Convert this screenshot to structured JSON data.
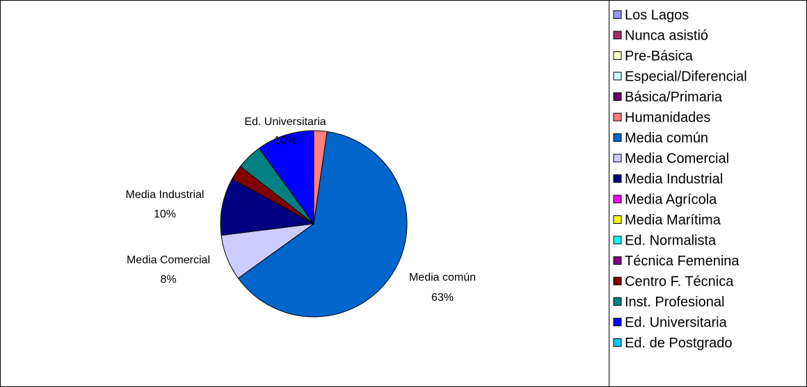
{
  "chart_data": {
    "type": "pie",
    "title": "",
    "start_angle_deg": 0,
    "direction": "clockwise",
    "slices": [
      {
        "label": "Los Lagos",
        "value": 0,
        "color": "#9999ff"
      },
      {
        "label": "Nunca asistió",
        "value": 0,
        "color": "#993366"
      },
      {
        "label": "Pre-Básica",
        "value": 0,
        "color": "#ffffcc"
      },
      {
        "label": "Especial/Diferencial",
        "value": 0,
        "color": "#ccffff"
      },
      {
        "label": "Básica/Primaria",
        "value": 0,
        "color": "#660066"
      },
      {
        "label": "Humanidades",
        "value": 2.3,
        "color": "#ff8080"
      },
      {
        "label": "Media común",
        "value": 63,
        "color": "#0066cc"
      },
      {
        "label": "Media Comercial",
        "value": 8,
        "color": "#ccccff"
      },
      {
        "label": "Media Industrial",
        "value": 10,
        "color": "#000080"
      },
      {
        "label": "Media Agrícola",
        "value": 0,
        "color": "#ff00ff"
      },
      {
        "label": "Media Marítima",
        "value": 0,
        "color": "#ffff00"
      },
      {
        "label": "Ed. Normalista",
        "value": 0,
        "color": "#00ffff"
      },
      {
        "label": "Técnica Femenina",
        "value": 0,
        "color": "#800080"
      },
      {
        "label": "Centro F. Técnica",
        "value": 2.6,
        "color": "#800000"
      },
      {
        "label": "Inst. Profesional",
        "value": 4.5,
        "color": "#008080"
      },
      {
        "label": "Ed. Universitaria",
        "value": 10,
        "color": "#0000ff"
      },
      {
        "label": "Ed. de Postgrado",
        "value": 0,
        "color": "#00ccff"
      }
    ],
    "data_labels": [
      {
        "name": "Ed. Universitaria",
        "percent": "10%"
      },
      {
        "name": "Media Industrial",
        "percent": "10%"
      },
      {
        "name": "Media Comercial",
        "percent": "8%"
      },
      {
        "name": "Media común",
        "percent": "63%"
      }
    ],
    "legend_position": "right"
  }
}
